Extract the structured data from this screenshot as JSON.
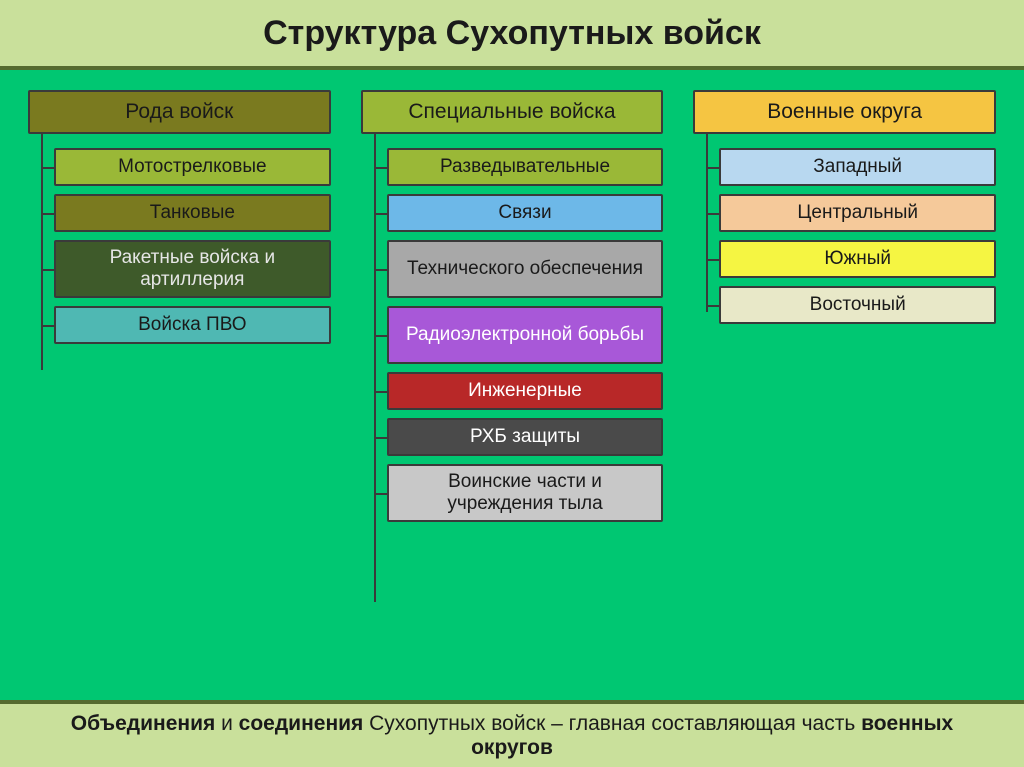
{
  "title": "Структура Сухопутных войск",
  "columns": [
    {
      "header": {
        "label": "Рода войск",
        "bg": "#7a7a1f"
      },
      "items": [
        {
          "label": "Мотострелковые",
          "bg": "#9ab837",
          "tall": false
        },
        {
          "label": "Танковые",
          "bg": "#7a7a1f",
          "tall": false
        },
        {
          "label": "Ракетные войска и артиллерия",
          "bg": "#3e5a2a",
          "fg": "#e6e6e6",
          "tall": true
        },
        {
          "label": "Войска ПВО",
          "bg": "#4fb8b3",
          "tall": false
        }
      ],
      "vline_height": 236
    },
    {
      "header": {
        "label": "Специальные войска",
        "bg": "#9ab837"
      },
      "items": [
        {
          "label": "Разведывательные",
          "bg": "#9ab837",
          "tall": false
        },
        {
          "label": "Связи",
          "bg": "#6db8e8",
          "tall": false
        },
        {
          "label": "Технического обеспечения",
          "bg": "#a8a8a8",
          "tall": true
        },
        {
          "label": "Радиоэлектронной борьбы",
          "bg": "#a858d8",
          "fg": "#ffffff",
          "tall": true
        },
        {
          "label": "Инженерные",
          "bg": "#b82828",
          "fg": "#ffffff",
          "tall": false
        },
        {
          "label": "РХБ защиты",
          "bg": "#4a4a4a",
          "fg": "#ffffff",
          "tall": false
        },
        {
          "label": "Воинские части и учреждения тыла",
          "bg": "#c8c8c8",
          "tall": true
        }
      ],
      "vline_height": 468
    },
    {
      "header": {
        "label": "Военные округа",
        "bg": "#f5c542"
      },
      "items": [
        {
          "label": "Западный",
          "bg": "#b8d8f0",
          "tall": false
        },
        {
          "label": "Центральный",
          "bg": "#f5c99a",
          "tall": false
        },
        {
          "label": "Южный",
          "bg": "#f5f542",
          "tall": false
        },
        {
          "label": "Восточный",
          "bg": "#e8e8c8",
          "tall": false
        }
      ],
      "vline_height": 178
    }
  ],
  "footer": {
    "parts": [
      {
        "text": "Объединения",
        "bold": true
      },
      {
        "text": " и ",
        "bold": false
      },
      {
        "text": "соединения",
        "bold": true
      },
      {
        "text": " Сухопутных войск – главная составляющая часть ",
        "bold": false
      },
      {
        "text": "военных округов",
        "bold": true
      }
    ]
  },
  "colors": {
    "page_bg": "#00c772",
    "bar_bg": "#c9e09b",
    "line": "#3a3a3a"
  }
}
